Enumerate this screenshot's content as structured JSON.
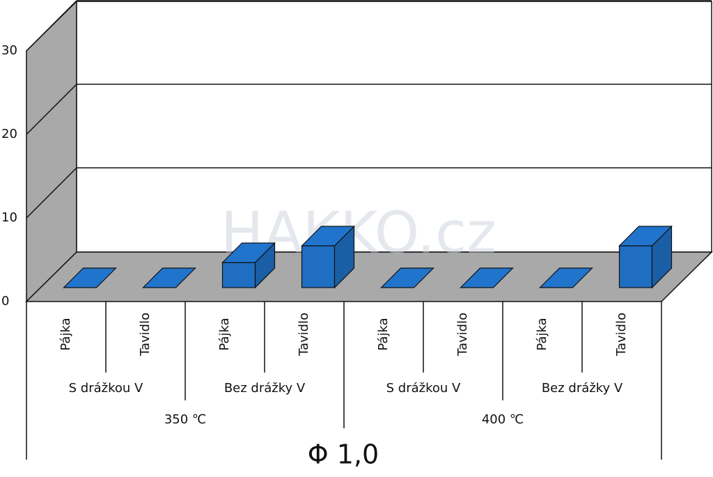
{
  "chart_data": {
    "type": "bar3d",
    "categories": [
      "Pájka",
      "Tavidlo",
      "Pájka",
      "Tavidlo",
      "Pájka",
      "Tavidlo",
      "Pájka",
      "Tavidlo"
    ],
    "groups": [
      "S drážkou V",
      "Bez drážky V",
      "S drážkou V",
      "Bez drážky V"
    ],
    "supergroups": [
      "350 ℃",
      "400 ℃"
    ],
    "xlabel": "Φ 1,0",
    "values": [
      0,
      0,
      3,
      5,
      0,
      0,
      0,
      5
    ],
    "color": "#1f6ec2",
    "ylim": [
      0,
      30
    ],
    "yticks": [
      0,
      10,
      20,
      30
    ],
    "grid": true,
    "watermark": "HAKKO.cz"
  }
}
